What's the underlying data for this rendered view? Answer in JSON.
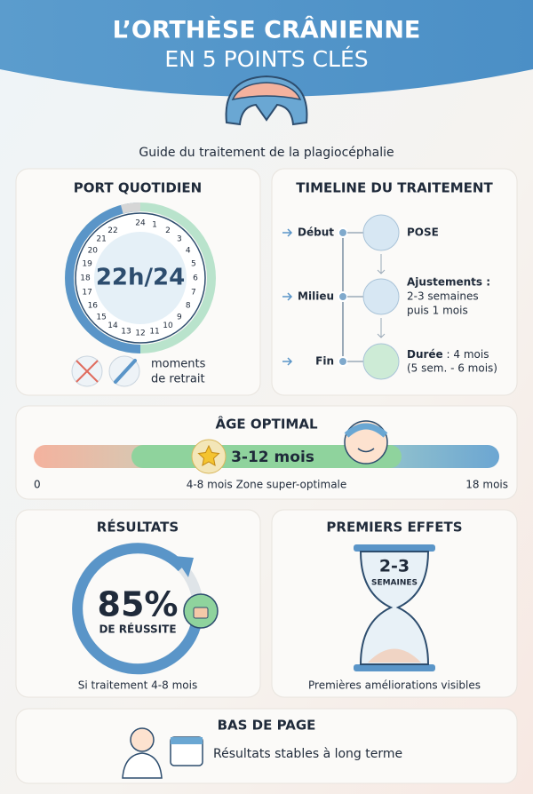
{
  "header": {
    "title_line1": "L’ORTHÈSE CRÂNIENNE",
    "title_line2": "EN 5 POINTS CLÉS",
    "subtitle": "Guide du traitement de la plagiocéphalie"
  },
  "daily_wear": {
    "title": "PORT QUOTIDIEN",
    "center": "22h/24",
    "hours": [
      24,
      1,
      2,
      3,
      4,
      5,
      6,
      7,
      8,
      9,
      10,
      11,
      12,
      13,
      14,
      15,
      16,
      17,
      18,
      19,
      20,
      21,
      22
    ],
    "removal_line1": "moments",
    "removal_line2": "de retrait"
  },
  "timeline": {
    "title": "TIMELINE DU TRAITEMENT",
    "stages": [
      {
        "label": "Début",
        "lines": [
          "POSE"
        ]
      },
      {
        "label": "Milieu",
        "lines": [
          "Ajustements :",
          "2-3 semaines",
          "puis 1 mois"
        ]
      },
      {
        "label": "Fin",
        "bold": "Durée",
        "rest": " : 4 mois",
        "lines": [
          "(5 sem. - 6 mois)"
        ]
      }
    ]
  },
  "optimal_age": {
    "title": "ÂGE OPTIMAL",
    "range": "3-12 mois",
    "start": "0",
    "middle": "4-8 mois Zone super-optimale",
    "end": "18 mois"
  },
  "results": {
    "title": "RÉSULTATS",
    "rate": "85%",
    "rate_label": "DE RÉUSSITE",
    "note": "Si traitement 4-8 mois"
  },
  "first_effects": {
    "title": "PREMIERS EFFETS",
    "delay": "2-3",
    "unit": "SEMAINES",
    "note": "Premières améliorations visibles"
  },
  "footer": {
    "title": "BAS DE PAGE",
    "text": "Résultats stables à long terme"
  }
}
